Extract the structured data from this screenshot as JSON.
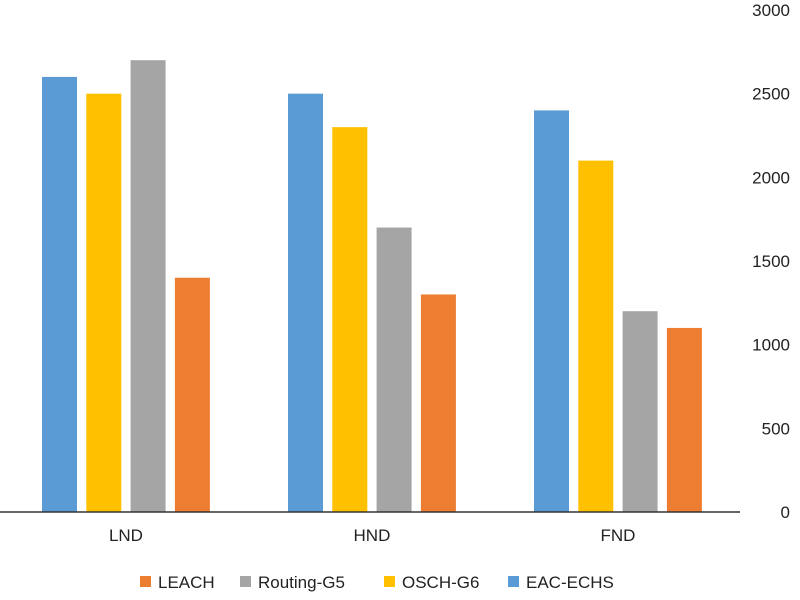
{
  "chart_data": {
    "type": "bar",
    "title": "",
    "xlabel": "",
    "ylabel": "",
    "categories": [
      "LND",
      "HND",
      "FND"
    ],
    "series": [
      {
        "name": "EAC-ECHS",
        "color": "#5b9bd5",
        "values": [
          2600,
          2500,
          2400
        ]
      },
      {
        "name": "OSCH-G6",
        "color": "#ffc000",
        "values": [
          2500,
          2300,
          2100
        ]
      },
      {
        "name": "Routing-G5",
        "color": "#a5a5a5",
        "values": [
          2700,
          1700,
          1200
        ]
      },
      {
        "name": "LEACH",
        "color": "#ed7d31",
        "values": [
          1400,
          1300,
          1100
        ]
      }
    ],
    "legend_order": [
      "LEACH",
      "Routing-G5",
      "OSCH-G6",
      "EAC-ECHS"
    ],
    "ylim": [
      0,
      3000
    ],
    "yticks": [
      "0",
      "500",
      "1000",
      "1500",
      "2000",
      "2500",
      "3000"
    ],
    "y_axis_side": "right",
    "grid": false,
    "legend_position": "bottom"
  }
}
